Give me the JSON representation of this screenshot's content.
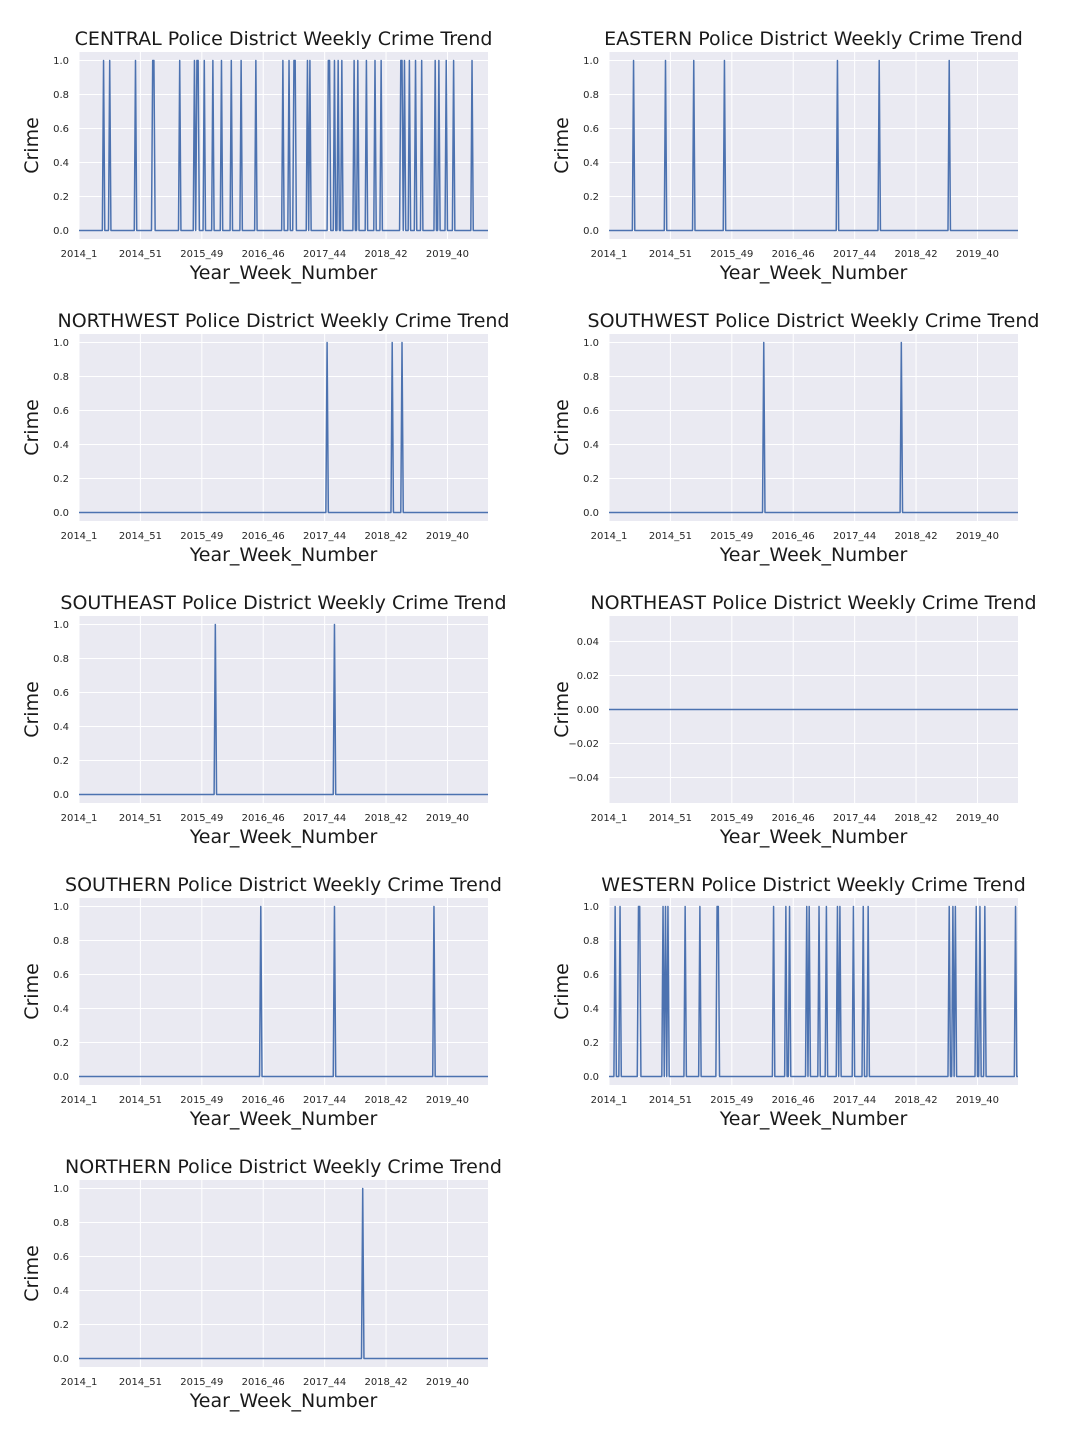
{
  "chart_data": [
    {
      "type": "line",
      "title": "CENTRAL Police District Weekly Crime Trend",
      "xlabel": "Year_Week_Number",
      "ylabel": "Crime",
      "xticks": [
        "2014_1",
        "2014_51",
        "2015_49",
        "2016_46",
        "2017_44",
        "2018_42",
        "2019_40"
      ],
      "xlim": [
        0,
        333
      ],
      "ylim": [
        -0.05,
        1.05
      ],
      "yticks": [
        "0.0",
        "0.2",
        "0.4",
        "0.6",
        "0.8",
        "1.0"
      ],
      "ytick_values": [
        0,
        0.2,
        0.4,
        0.6,
        0.8,
        1.0
      ],
      "grid": true,
      "series": [
        {
          "y_zero_except_weeks": [
            20,
            25,
            46,
            60,
            61,
            82,
            94,
            96,
            97,
            102,
            109,
            116,
            124,
            132,
            144,
            166,
            171,
            175,
            176,
            186,
            188,
            203,
            204,
            208,
            211,
            214,
            224,
            227,
            234,
            241,
            246,
            262,
            263,
            265,
            269,
            274,
            279,
            290,
            293,
            299,
            305,
            320
          ]
        }
      ]
    },
    {
      "type": "line",
      "title": "EASTERN Police District Weekly Crime Trend",
      "xlabel": "Year_Week_Number",
      "ylabel": "Crime",
      "xticks": [
        "2014_1",
        "2014_51",
        "2015_49",
        "2016_46",
        "2017_44",
        "2018_42",
        "2019_40"
      ],
      "xlim": [
        0,
        333
      ],
      "ylim": [
        -0.05,
        1.05
      ],
      "yticks": [
        "0.0",
        "0.2",
        "0.4",
        "0.6",
        "0.8",
        "1.0"
      ],
      "ytick_values": [
        0,
        0.2,
        0.4,
        0.6,
        0.8,
        1.0
      ],
      "grid": true,
      "series": [
        {
          "y_zero_except_weeks": [
            20,
            46,
            69,
            94,
            186,
            220,
            277
          ]
        }
      ]
    },
    {
      "type": "line",
      "title": "NORTHWEST Police District Weekly Crime Trend",
      "xlabel": "Year_Week_Number",
      "ylabel": "Crime",
      "xticks": [
        "2014_1",
        "2014_51",
        "2015_49",
        "2016_46",
        "2017_44",
        "2018_42",
        "2019_40"
      ],
      "xlim": [
        0,
        333
      ],
      "ylim": [
        -0.05,
        1.05
      ],
      "yticks": [
        "0.0",
        "0.2",
        "0.4",
        "0.6",
        "0.8",
        "1.0"
      ],
      "ytick_values": [
        0,
        0.2,
        0.4,
        0.6,
        0.8,
        1.0
      ],
      "grid": true,
      "series": [
        {
          "y_zero_except_weeks": [
            202,
            255,
            263
          ]
        }
      ]
    },
    {
      "type": "line",
      "title": "SOUTHWEST Police District Weekly Crime Trend",
      "xlabel": "Year_Week_Number",
      "ylabel": "Crime",
      "xticks": [
        "2014_1",
        "2014_51",
        "2015_49",
        "2016_46",
        "2017_44",
        "2018_42",
        "2019_40"
      ],
      "xlim": [
        0,
        333
      ],
      "ylim": [
        -0.05,
        1.05
      ],
      "yticks": [
        "0.0",
        "0.2",
        "0.4",
        "0.6",
        "0.8",
        "1.0"
      ],
      "ytick_values": [
        0,
        0.2,
        0.4,
        0.6,
        0.8,
        1.0
      ],
      "grid": true,
      "series": [
        {
          "y_zero_except_weeks": [
            126,
            238
          ]
        }
      ]
    },
    {
      "type": "line",
      "title": "SOUTHEAST Police District Weekly Crime Trend",
      "xlabel": "Year_Week_Number",
      "ylabel": "Crime",
      "xticks": [
        "2014_1",
        "2014_51",
        "2015_49",
        "2016_46",
        "2017_44",
        "2018_42",
        "2019_40"
      ],
      "xlim": [
        0,
        333
      ],
      "ylim": [
        -0.05,
        1.05
      ],
      "yticks": [
        "0.0",
        "0.2",
        "0.4",
        "0.6",
        "0.8",
        "1.0"
      ],
      "ytick_values": [
        0,
        0.2,
        0.4,
        0.6,
        0.8,
        1.0
      ],
      "grid": true,
      "series": [
        {
          "y_zero_except_weeks": [
            111,
            208
          ]
        }
      ]
    },
    {
      "type": "line",
      "title": "NORTHEAST Police District Weekly Crime Trend",
      "xlabel": "Year_Week_Number",
      "ylabel": "Crime",
      "xticks": [
        "2014_1",
        "2014_51",
        "2015_49",
        "2016_46",
        "2017_44",
        "2018_42",
        "2019_40"
      ],
      "xlim": [
        0,
        333
      ],
      "ylim": [
        -0.055,
        0.055
      ],
      "yticks": [
        "−0.04",
        "−0.02",
        "0.00",
        "0.02",
        "0.04"
      ],
      "ytick_values": [
        -0.04,
        -0.02,
        0.0,
        0.02,
        0.04
      ],
      "grid": true,
      "series": [
        {
          "y_zero_except_weeks": []
        }
      ]
    },
    {
      "type": "line",
      "title": "SOUTHERN Police District Weekly Crime Trend",
      "xlabel": "Year_Week_Number",
      "ylabel": "Crime",
      "xticks": [
        "2014_1",
        "2014_51",
        "2015_49",
        "2016_46",
        "2017_44",
        "2018_42",
        "2019_40"
      ],
      "xlim": [
        0,
        333
      ],
      "ylim": [
        -0.05,
        1.05
      ],
      "yticks": [
        "0.0",
        "0.2",
        "0.4",
        "0.6",
        "0.8",
        "1.0"
      ],
      "ytick_values": [
        0,
        0.2,
        0.4,
        0.6,
        0.8,
        1.0
      ],
      "grid": true,
      "series": [
        {
          "y_zero_except_weeks": [
            148,
            208,
            289
          ]
        }
      ]
    },
    {
      "type": "line",
      "title": "WESTERN Police District Weekly Crime Trend",
      "xlabel": "Year_Week_Number",
      "ylabel": "Crime",
      "xticks": [
        "2014_1",
        "2014_51",
        "2015_49",
        "2016_46",
        "2017_44",
        "2018_42",
        "2019_40"
      ],
      "xlim": [
        0,
        333
      ],
      "ylim": [
        -0.05,
        1.05
      ],
      "yticks": [
        "0.0",
        "0.2",
        "0.4",
        "0.6",
        "0.8",
        "1.0"
      ],
      "ytick_values": [
        0,
        0.2,
        0.4,
        0.6,
        0.8,
        1.0
      ],
      "grid": true,
      "series": [
        {
          "y_zero_except_weeks": [
            5,
            9,
            24,
            25,
            44,
            46,
            48,
            62,
            74,
            88,
            89,
            134,
            144,
            147,
            161,
            163,
            171,
            177,
            186,
            188,
            199,
            207,
            211,
            277,
            280,
            282,
            299,
            302,
            306,
            331
          ]
        }
      ]
    },
    {
      "type": "line",
      "title": "NORTHERN Police District Weekly Crime Trend",
      "xlabel": "Year_Week_Number",
      "ylabel": "Crime",
      "xticks": [
        "2014_1",
        "2014_51",
        "2015_49",
        "2016_46",
        "2017_44",
        "2018_42",
        "2019_40"
      ],
      "xlim": [
        0,
        333
      ],
      "ylim": [
        -0.05,
        1.05
      ],
      "yticks": [
        "0.0",
        "0.2",
        "0.4",
        "0.6",
        "0.8",
        "1.0"
      ],
      "ytick_values": [
        0,
        0.2,
        0.4,
        0.6,
        0.8,
        1.0
      ],
      "grid": true,
      "series": [
        {
          "y_zero_except_weeks": [
            231
          ]
        }
      ]
    }
  ],
  "colors": {
    "background": "#eaeaf2",
    "grid": "#ffffff",
    "line": "#4c72b0"
  }
}
